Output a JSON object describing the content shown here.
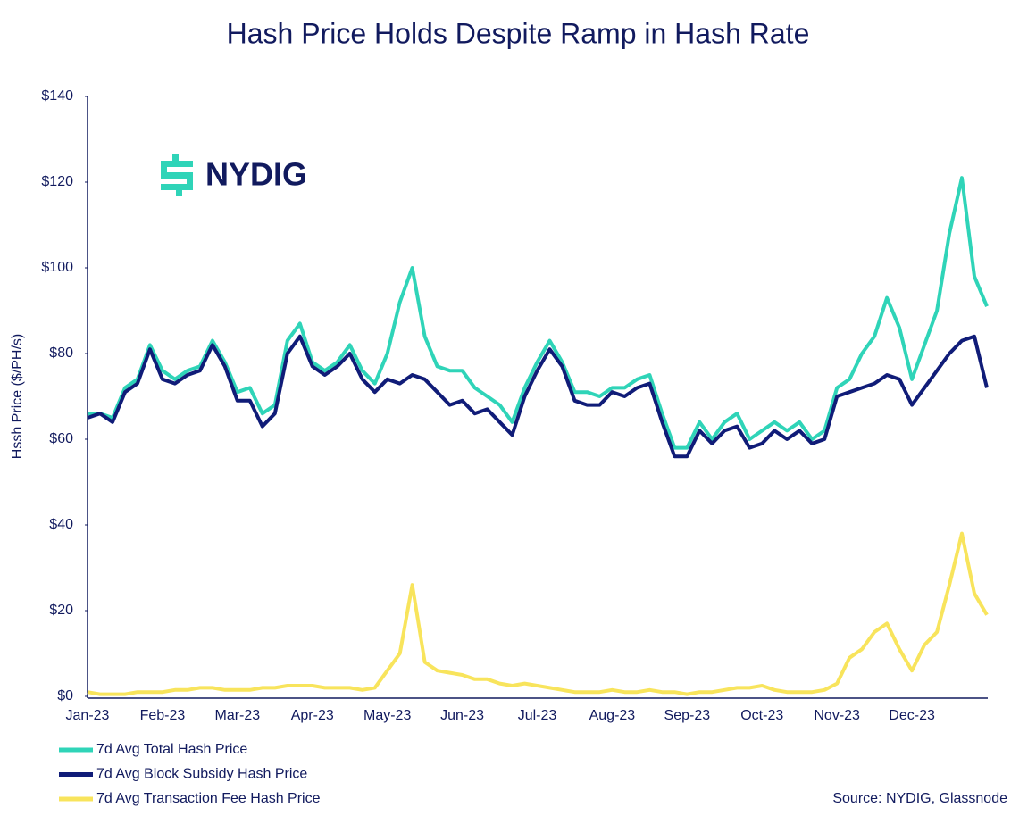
{
  "chart_data": {
    "type": "line",
    "title": "Hash Price Holds Despite Ramp in Hash Rate",
    "y_label": "Hssh Price ($/PH/s)",
    "source": "Source: NYDIG, Glassnode",
    "logo": "NYDIG",
    "categories": [
      "Jan-23",
      null,
      null,
      null,
      null,
      null,
      "Feb-23",
      null,
      null,
      null,
      null,
      null,
      "Mar-23",
      null,
      null,
      null,
      null,
      null,
      "Apr-23",
      null,
      null,
      null,
      null,
      null,
      "May-23",
      null,
      null,
      null,
      null,
      null,
      "Jun-23",
      null,
      null,
      null,
      null,
      null,
      "Jul-23",
      null,
      null,
      null,
      null,
      null,
      "Aug-23",
      null,
      null,
      null,
      null,
      null,
      "Sep-23",
      null,
      null,
      null,
      null,
      null,
      "Oct-23",
      null,
      null,
      null,
      null,
      null,
      "Nov-23",
      null,
      null,
      null,
      null,
      null,
      "Dec-23",
      null,
      null,
      null,
      null,
      null,
      null
    ],
    "series": [
      {
        "name": "7d Avg Total Hash Price",
        "color": "#2fd4b8",
        "values": [
          66,
          66,
          65,
          72,
          74,
          82,
          76,
          74,
          76,
          77,
          83,
          78,
          71,
          72,
          66,
          68,
          83,
          87,
          78,
          76,
          78,
          82,
          76,
          73,
          80,
          92,
          100,
          84,
          77,
          76,
          76,
          72,
          70,
          68,
          64,
          72,
          78,
          83,
          78,
          71,
          71,
          70,
          72,
          72,
          74,
          75,
          66,
          58,
          58,
          64,
          60,
          64,
          66,
          60,
          62,
          64,
          62,
          64,
          60,
          62,
          72,
          74,
          80,
          84,
          93,
          86,
          74,
          82,
          90,
          108,
          121,
          98,
          91
        ]
      },
      {
        "name": "7d Avg Block Subsidy Hash Price",
        "color": "#101c78",
        "values": [
          65,
          66,
          64,
          71,
          73,
          81,
          74,
          73,
          75,
          76,
          82,
          77,
          69,
          69,
          63,
          66,
          80,
          84,
          77,
          75,
          77,
          80,
          74,
          71,
          74,
          73,
          75,
          74,
          71,
          68,
          69,
          66,
          67,
          64,
          61,
          70,
          76,
          81,
          77,
          69,
          68,
          68,
          71,
          70,
          72,
          73,
          64,
          56,
          56,
          62,
          59,
          62,
          63,
          58,
          59,
          62,
          60,
          62,
          59,
          60,
          70,
          71,
          72,
          73,
          75,
          74,
          68,
          72,
          76,
          80,
          83,
          84,
          72
        ]
      },
      {
        "name": "7d Avg Transaction Fee Hash Price",
        "color": "#f8e45c",
        "values": [
          1,
          0.5,
          0.5,
          0.5,
          1,
          1,
          1,
          1.5,
          1.5,
          2,
          2,
          1.5,
          1.5,
          1.5,
          2,
          2,
          2.5,
          2.5,
          2.5,
          2,
          2,
          2,
          1.5,
          2,
          6,
          10,
          26,
          8,
          6,
          5.5,
          5,
          4,
          4,
          3,
          2.5,
          3,
          2.5,
          2,
          1.5,
          1,
          1,
          1,
          1.5,
          1,
          1,
          1.5,
          1,
          1,
          0.5,
          1,
          1,
          1.5,
          2,
          2,
          2.5,
          1.5,
          1,
          1,
          1,
          1.5,
          3,
          9,
          11,
          15,
          17,
          11,
          6,
          12,
          15,
          26,
          38,
          24,
          19
        ]
      }
    ],
    "ylim": [
      0,
      140
    ],
    "yticks": [
      {
        "value": 0,
        "label": "$0"
      },
      {
        "value": 20,
        "label": "$20"
      },
      {
        "value": 40,
        "label": "$40"
      },
      {
        "value": 60,
        "label": "$60"
      },
      {
        "value": 80,
        "label": "$80"
      },
      {
        "value": 100,
        "label": "$100"
      },
      {
        "value": 120,
        "label": "$120"
      },
      {
        "value": 140,
        "label": "$140"
      }
    ],
    "grid": false,
    "legend": "bottom-left"
  }
}
